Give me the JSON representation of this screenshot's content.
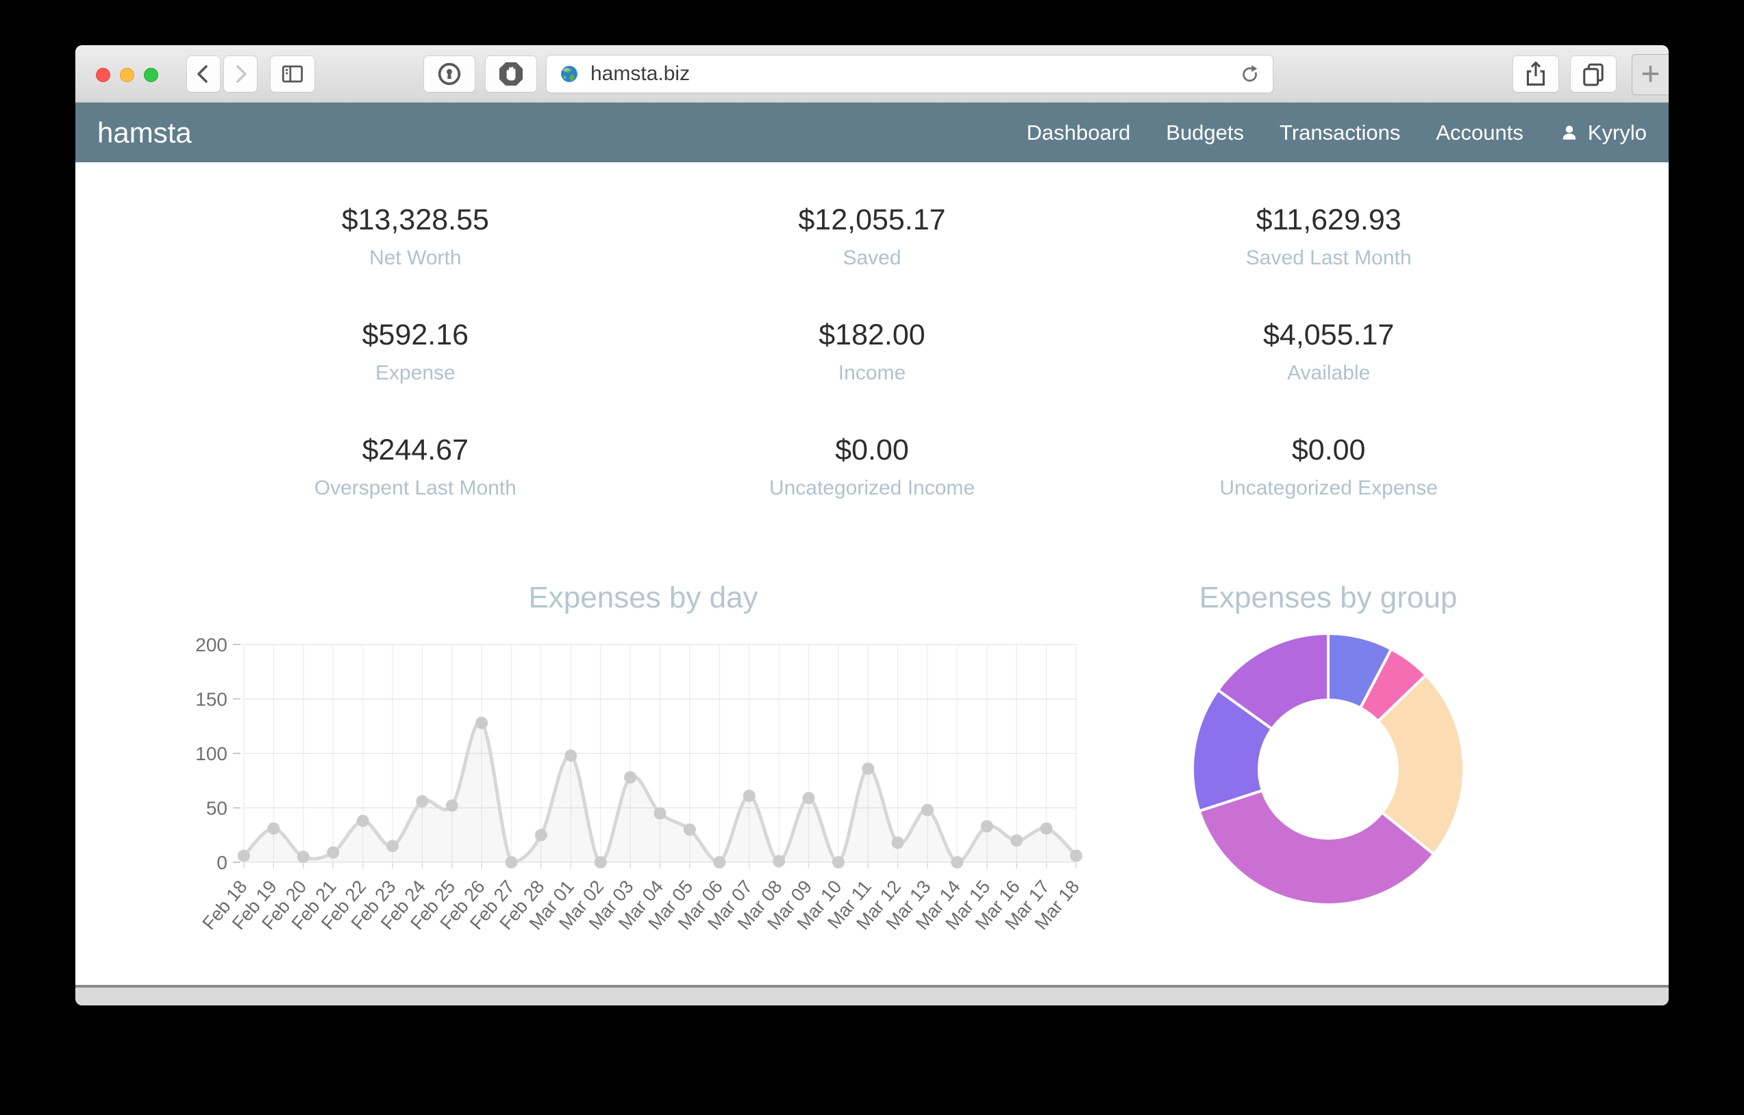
{
  "browser": {
    "url": "hamsta.biz",
    "new_tab_label": "+"
  },
  "navbar": {
    "brand": "hamsta",
    "items": [
      "Dashboard",
      "Budgets",
      "Transactions",
      "Accounts"
    ],
    "user": "Kyrylo"
  },
  "stats": [
    {
      "value": "$13,328.55",
      "label": "Net Worth"
    },
    {
      "value": "$12,055.17",
      "label": "Saved"
    },
    {
      "value": "$11,629.93",
      "label": "Saved Last Month"
    },
    {
      "value": "$592.16",
      "label": "Expense"
    },
    {
      "value": "$182.00",
      "label": "Income"
    },
    {
      "value": "$4,055.17",
      "label": "Available"
    },
    {
      "value": "$244.67",
      "label": "Overspent Last Month"
    },
    {
      "value": "$0.00",
      "label": "Uncategorized Income"
    },
    {
      "value": "$0.00",
      "label": "Uncategorized Expense"
    }
  ],
  "chart_data": [
    {
      "type": "line",
      "title": "Expenses by day",
      "x": [
        "Feb 18",
        "Feb 19",
        "Feb 20",
        "Feb 21",
        "Feb 22",
        "Feb 23",
        "Feb 24",
        "Feb 25",
        "Feb 26",
        "Feb 27",
        "Feb 28",
        "Mar 01",
        "Mar 02",
        "Mar 03",
        "Mar 04",
        "Mar 05",
        "Mar 06",
        "Mar 07",
        "Mar 08",
        "Mar 09",
        "Mar 10",
        "Mar 11",
        "Mar 12",
        "Mar 13",
        "Mar 14",
        "Mar 15",
        "Mar 16",
        "Mar 17",
        "Mar 18"
      ],
      "values": [
        6,
        31,
        5,
        9,
        38,
        15,
        56,
        52,
        128,
        0,
        25,
        98,
        0,
        78,
        45,
        30,
        0,
        61,
        1,
        59,
        0,
        86,
        18,
        48,
        0,
        33,
        20,
        31,
        6
      ],
      "ylim": [
        0,
        200
      ],
      "yticks": [
        0,
        50,
        100,
        150,
        200
      ],
      "grid": true,
      "legend": "none",
      "line_color": "#d7d7d7",
      "point_color": "#cbcbcb",
      "fill_color": "rgba(140,140,140,0.07)"
    },
    {
      "type": "donut",
      "title": "Expenses by group",
      "segments": [
        {
          "color": "#7b80ed",
          "fraction": 0.077
        },
        {
          "color": "#f56eb3",
          "fraction": 0.051
        },
        {
          "color": "#fbdcb3",
          "fraction": 0.23
        },
        {
          "color": "#cb70d3",
          "fraction": 0.342
        },
        {
          "color": "#8c70ec",
          "fraction": 0.149
        },
        {
          "color": "#b468de",
          "fraction": 0.151
        }
      ],
      "inner_radius_ratio": 0.51,
      "gap_color": "#ffffff"
    }
  ]
}
